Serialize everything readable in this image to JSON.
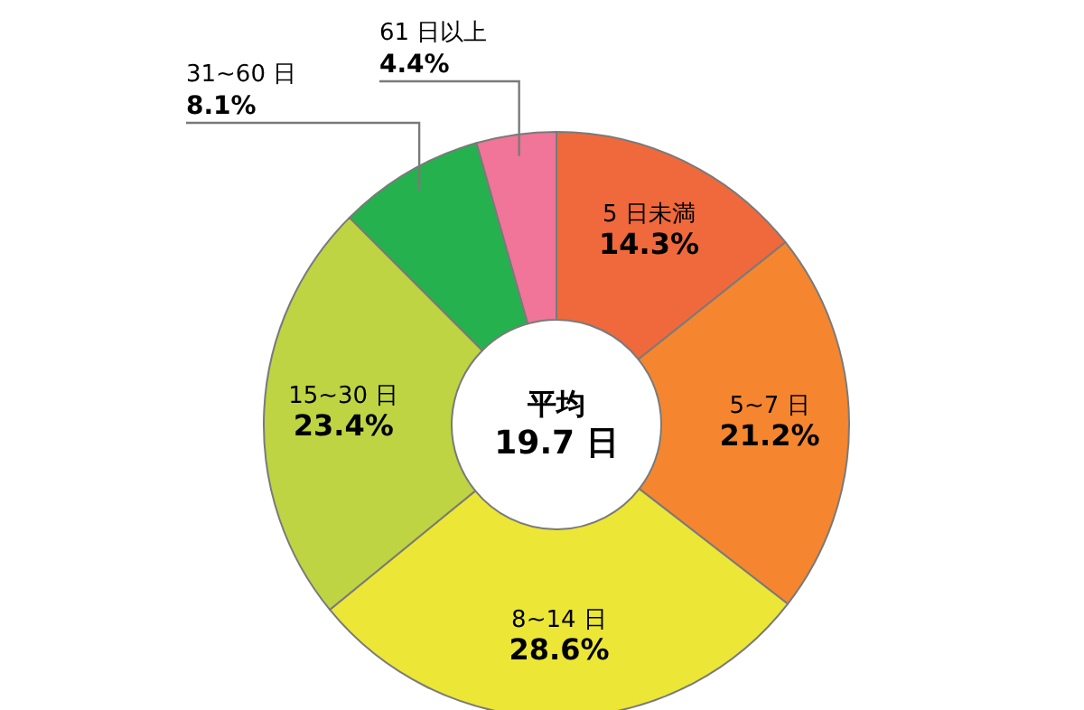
{
  "chart_data": {
    "type": "donut",
    "categories": [
      "5 日未満",
      "5~7 日",
      "8~14 日",
      "15~30 日",
      "31~60 日",
      "61 日以上"
    ],
    "values": [
      14.3,
      21.2,
      28.6,
      23.4,
      8.1,
      4.4
    ],
    "colors": [
      "#ef693c",
      "#f5862f",
      "#ece636",
      "#bed443",
      "#26b14f",
      "#f07598"
    ],
    "value_labels": [
      "14.3%",
      "21.2%",
      "28.6%",
      "23.4%",
      "8.1%",
      "4.4%"
    ],
    "annotations": [
      "平均",
      "19.7 日"
    ]
  }
}
